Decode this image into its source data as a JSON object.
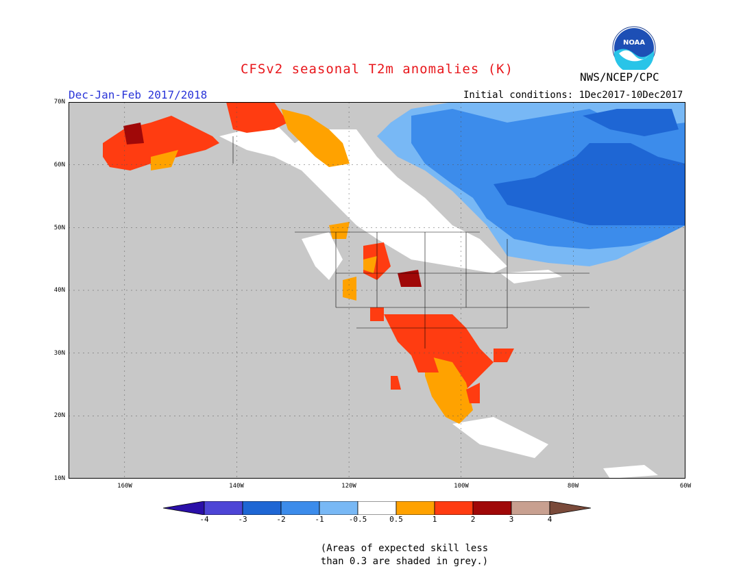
{
  "header": {
    "title": "CFSv2 seasonal T2m anomalies (K)",
    "season": "Dec-Jan-Feb 2017/2018",
    "initial_conditions": "Initial conditions: 1Dec2017-10Dec2017",
    "agency": "NWS/NCEP/CPC",
    "logo_text": "NOAA"
  },
  "axes": {
    "lat_labels": [
      "70N",
      "60N",
      "50N",
      "40N",
      "30N",
      "20N",
      "10N"
    ],
    "lon_labels": [
      "160W",
      "140W",
      "120W",
      "100W",
      "80W",
      "60W"
    ],
    "lon_range": [
      -170,
      -60
    ],
    "lat_range": [
      10,
      70
    ]
  },
  "legend": {
    "labels": [
      "-4",
      "-3",
      "-2",
      "-1",
      "-0.5",
      "0.5",
      "1",
      "2",
      "3",
      "4"
    ],
    "colors": [
      "#2a0fa8",
      "#4d45d6",
      "#1e66d4",
      "#3c8ceb",
      "#78b8f5",
      "#ffffff",
      "#ffa200",
      "#ff3c11",
      "#a00808",
      "#c8a090",
      "#7a4a3a"
    ],
    "grey_color": "#c8c8c8"
  },
  "note": {
    "line1": "(Areas of expected skill less",
    "line2": "than 0.3 are shaded in grey.)"
  }
}
